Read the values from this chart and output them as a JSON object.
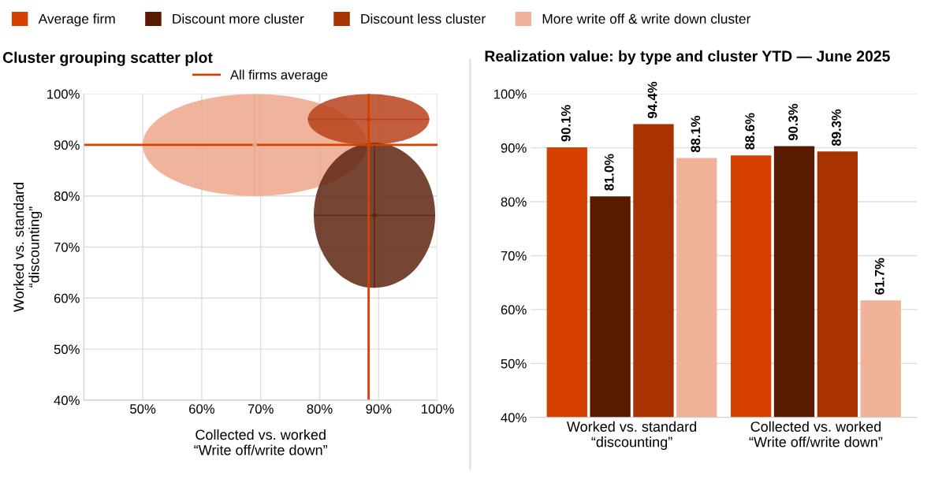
{
  "chart_data": [
    {
      "type": "scatter",
      "title": "Cluster grouping scatter plot",
      "xlabel": "Collected vs. worked\n“Write off/write down”",
      "ylabel": "Worked vs. standard\n“discounting”",
      "xlim": [
        40,
        100
      ],
      "ylim": [
        40,
        100
      ],
      "xticks": [
        {
          "value": 50,
          "label": "50%"
        },
        {
          "value": 60,
          "label": "60%"
        },
        {
          "value": 70,
          "label": "70%"
        },
        {
          "value": 80,
          "label": "80%"
        },
        {
          "value": 90,
          "label": "90%"
        },
        {
          "value": 100,
          "label": "100%"
        }
      ],
      "yticks": [
        {
          "value": 40,
          "label": "40%"
        },
        {
          "value": 50,
          "label": "50%"
        },
        {
          "value": 60,
          "label": "60%"
        },
        {
          "value": 70,
          "label": "70%"
        },
        {
          "value": 80,
          "label": "80%"
        },
        {
          "value": 90,
          "label": "90%"
        },
        {
          "value": 100,
          "label": "100%"
        }
      ],
      "grid": true,
      "legend": "top",
      "series": [
        {
          "color": "#eca78a",
          "x": [
            69
          ],
          "values": [
            90
          ],
          "xerrors": [
            19
          ],
          "errors": [
            10
          ]
        },
        {
          "color": "#b8421c",
          "x": [
            88.3
          ],
          "values": [
            95
          ],
          "xerrors": [
            10.3
          ],
          "errors": [
            5
          ]
        },
        {
          "color": "#5e2510",
          "x": [
            89.3
          ],
          "values": [
            76.2
          ],
          "xerrors": [
            10.3
          ],
          "errors": [
            14.2
          ]
        }
      ],
      "ref_lines": [
        {
          "axis": "x",
          "value": 88.3,
          "label": "All firms average",
          "color": "#d64000"
        },
        {
          "axis": "y",
          "value": 90,
          "color": "#d64000"
        }
      ]
    },
    {
      "type": "bar",
      "title": "Realization value: by type and cluster YTD — June 2025",
      "categories": [
        "Worked vs. standard\n“discounting”",
        "Collected vs. worked\n“Write off/write down”"
      ],
      "ylim": [
        40,
        100
      ],
      "yticks": [
        {
          "value": 40,
          "label": "40%"
        },
        {
          "value": 50,
          "label": "50%"
        },
        {
          "value": 60,
          "label": "60%"
        },
        {
          "value": 70,
          "label": "70%"
        },
        {
          "value": 80,
          "label": "80%"
        },
        {
          "value": 90,
          "label": "90%"
        },
        {
          "value": 100,
          "label": "100%"
        }
      ],
      "grid": "y",
      "legend": "top",
      "series": [
        {
          "name": "Average firm",
          "color": "#d64000",
          "values": [
            90.1,
            88.6
          ]
        },
        {
          "name": "Discount more cluster",
          "color": "#5a1a00",
          "values": [
            81.0,
            90.3
          ]
        },
        {
          "name": "Discount less cluster",
          "color": "#a83200",
          "values": [
            94.4,
            89.3
          ]
        },
        {
          "name": "More write off & write down cluster",
          "color": "#f0b39a",
          "values": [
            88.1,
            61.7
          ]
        }
      ],
      "value_labels": [
        [
          "90.1%",
          "88.6%"
        ],
        [
          "81.0%",
          "90.3%"
        ],
        [
          "94.4%",
          "89.3%"
        ],
        [
          "88.1%",
          "61.7%"
        ]
      ]
    }
  ]
}
